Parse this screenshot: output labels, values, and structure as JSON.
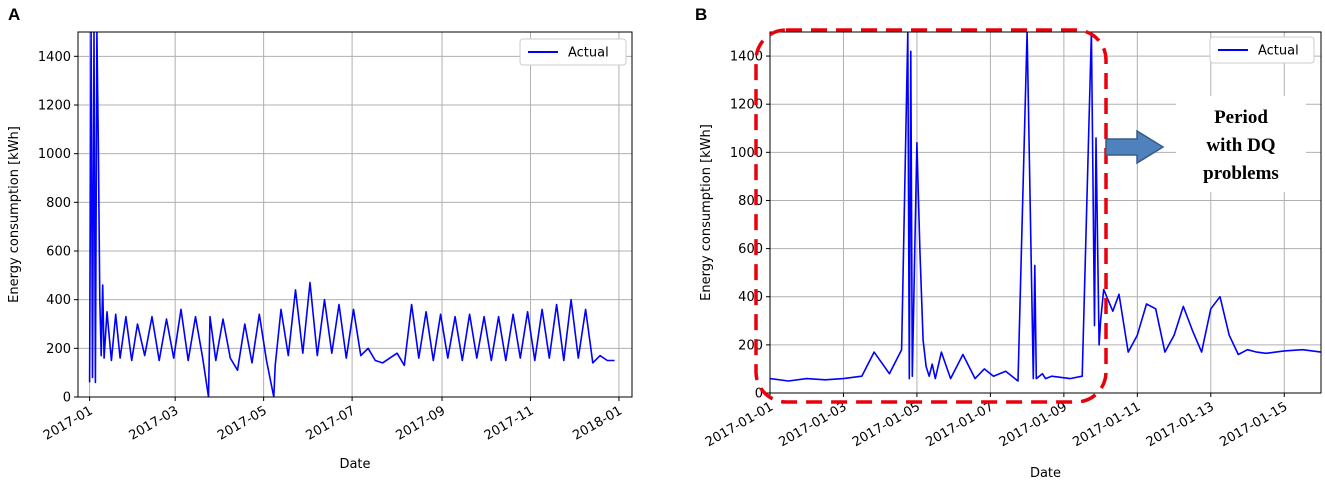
{
  "chart_data": [
    {
      "panel_label": "A",
      "type": "line",
      "xlabel": "Date",
      "ylabel": "Energy consumption [kWh]",
      "ylim": [
        0,
        1500
      ],
      "yticks": [
        0,
        200,
        400,
        600,
        800,
        1000,
        1200,
        1400
      ],
      "xlim": [
        "2016-12-24",
        "2018-01-10"
      ],
      "xticks": [
        "2017-01",
        "2017-03",
        "2017-05",
        "2017-07",
        "2017-09",
        "2017-11",
        "2018-01"
      ],
      "grid": true,
      "legend": {
        "position": "top-right",
        "entries": [
          "Actual"
        ]
      },
      "series": [
        {
          "name": "Actual",
          "color": "#0000ff",
          "x": [
            "2017-01-01",
            "2017-01-02",
            "2017-01-03",
            "2017-01-04",
            "2017-01-05",
            "2017-01-06",
            "2017-01-07",
            "2017-01-08",
            "2017-01-09",
            "2017-01-10",
            "2017-01-11",
            "2017-01-13",
            "2017-01-16",
            "2017-01-19",
            "2017-01-22",
            "2017-01-26",
            "2017-01-30",
            "2017-02-03",
            "2017-02-08",
            "2017-02-13",
            "2017-02-18",
            "2017-02-23",
            "2017-02-28",
            "2017-03-05",
            "2017-03-10",
            "2017-03-15",
            "2017-03-20",
            "2017-03-24",
            "2017-03-25",
            "2017-03-29",
            "2017-04-03",
            "2017-04-08",
            "2017-04-13",
            "2017-04-18",
            "2017-04-23",
            "2017-04-28",
            "2017-05-03",
            "2017-05-08",
            "2017-05-09",
            "2017-05-13",
            "2017-05-18",
            "2017-05-23",
            "2017-05-28",
            "2017-06-02",
            "2017-06-07",
            "2017-06-12",
            "2017-06-17",
            "2017-06-22",
            "2017-06-27",
            "2017-07-02",
            "2017-07-07",
            "2017-07-12",
            "2017-07-17",
            "2017-07-22",
            "2017-07-27",
            "2017-08-01",
            "2017-08-06",
            "2017-08-11",
            "2017-08-16",
            "2017-08-21",
            "2017-08-26",
            "2017-08-31",
            "2017-09-05",
            "2017-09-10",
            "2017-09-15",
            "2017-09-20",
            "2017-09-25",
            "2017-09-30",
            "2017-10-05",
            "2017-10-10",
            "2017-10-15",
            "2017-10-20",
            "2017-10-25",
            "2017-10-30",
            "2017-11-04",
            "2017-11-09",
            "2017-11-14",
            "2017-11-19",
            "2017-11-24",
            "2017-11-29",
            "2017-12-04",
            "2017-12-09",
            "2017-12-14",
            "2017-12-19",
            "2017-12-24",
            "2017-12-29"
          ],
          "y": [
            60,
            1500,
            80,
            1500,
            60,
            1500,
            1050,
            400,
            170,
            460,
            160,
            350,
            150,
            340,
            160,
            330,
            150,
            300,
            170,
            330,
            150,
            320,
            160,
            360,
            150,
            330,
            160,
            0,
            330,
            150,
            320,
            160,
            110,
            300,
            140,
            340,
            150,
            0,
            130,
            360,
            170,
            440,
            180,
            470,
            170,
            400,
            180,
            380,
            160,
            360,
            170,
            200,
            150,
            140,
            160,
            180,
            130,
            380,
            160,
            350,
            150,
            340,
            160,
            330,
            150,
            340,
            160,
            330,
            150,
            330,
            150,
            340,
            160,
            350,
            150,
            360,
            160,
            380,
            150,
            400,
            160,
            360,
            140,
            170,
            150,
            150
          ]
        }
      ]
    },
    {
      "panel_label": "B",
      "type": "line",
      "xlabel": "Date",
      "ylabel": "Energy consumption [kWh]",
      "ylim": [
        0,
        1500
      ],
      "yticks": [
        0,
        200,
        400,
        600,
        800,
        1000,
        1200,
        1400
      ],
      "xlim": [
        "2017-01-01",
        "2017-01-16"
      ],
      "xticks": [
        "2017-01-01",
        "2017-01-03",
        "2017-01-05",
        "2017-01-07",
        "2017-01-09",
        "2017-01-11",
        "2017-01-13",
        "2017-01-15"
      ],
      "grid": true,
      "legend": {
        "position": "top-right",
        "entries": [
          "Actual"
        ]
      },
      "annotation": {
        "text": [
          "Period",
          "with DQ",
          "problems"
        ]
      },
      "series": [
        {
          "name": "Actual",
          "color": "#0000ff",
          "x": [
            "2017-01-01T00:00",
            "2017-01-01T12:00",
            "2017-01-02T00:00",
            "2017-01-02T12:00",
            "2017-01-03T00:00",
            "2017-01-03T12:00",
            "2017-01-03T20:00",
            "2017-01-04T06:00",
            "2017-01-04T14:00",
            "2017-01-04T18:00",
            "2017-01-04T19:00",
            "2017-01-04T20:00",
            "2017-01-04T21:00",
            "2017-01-05T00:00",
            "2017-01-05T02:00",
            "2017-01-05T04:00",
            "2017-01-05T06:00",
            "2017-01-05T08:00",
            "2017-01-05T10:00",
            "2017-01-05T12:00",
            "2017-01-05T16:00",
            "2017-01-05T22:00",
            "2017-01-06T06:00",
            "2017-01-06T14:00",
            "2017-01-06T20:00",
            "2017-01-07T02:00",
            "2017-01-07T10:00",
            "2017-01-07T18:00",
            "2017-01-08T00:00",
            "2017-01-08T04:00",
            "2017-01-08T05:00",
            "2017-01-08T06:00",
            "2017-01-08T10:00",
            "2017-01-08T12:00",
            "2017-01-08T16:00",
            "2017-01-09T04:00",
            "2017-01-09T12:00",
            "2017-01-09T18:00",
            "2017-01-09T20:00",
            "2017-01-09T21:00",
            "2017-01-09T23:00",
            "2017-01-10T00:00",
            "2017-01-10T02:00",
            "2017-01-10T08:00",
            "2017-01-10T12:00",
            "2017-01-10T18:00",
            "2017-01-11T00:00",
            "2017-01-11T06:00",
            "2017-01-11T12:00",
            "2017-01-11T18:00",
            "2017-01-12T00:00",
            "2017-01-12T06:00",
            "2017-01-12T12:00",
            "2017-01-12T18:00",
            "2017-01-13T00:00",
            "2017-01-13T06:00",
            "2017-01-13T12:00",
            "2017-01-13T18:00",
            "2017-01-14T00:00",
            "2017-01-14T06:00",
            "2017-01-14T12:00",
            "2017-01-15T00:00",
            "2017-01-15T12:00",
            "2017-01-16T00:00"
          ],
          "y": [
            60,
            50,
            60,
            55,
            60,
            70,
            170,
            80,
            180,
            1500,
            60,
            1420,
            70,
            1040,
            580,
            220,
            110,
            70,
            120,
            60,
            170,
            60,
            160,
            60,
            100,
            70,
            90,
            50,
            1500,
            60,
            530,
            60,
            80,
            60,
            70,
            60,
            70,
            1500,
            280,
            1060,
            200,
            300,
            430,
            340,
            410,
            170,
            240,
            370,
            350,
            170,
            240,
            360,
            260,
            170,
            350,
            400,
            240,
            160,
            180,
            170,
            165,
            175,
            180,
            170
          ]
        }
      ]
    }
  ]
}
